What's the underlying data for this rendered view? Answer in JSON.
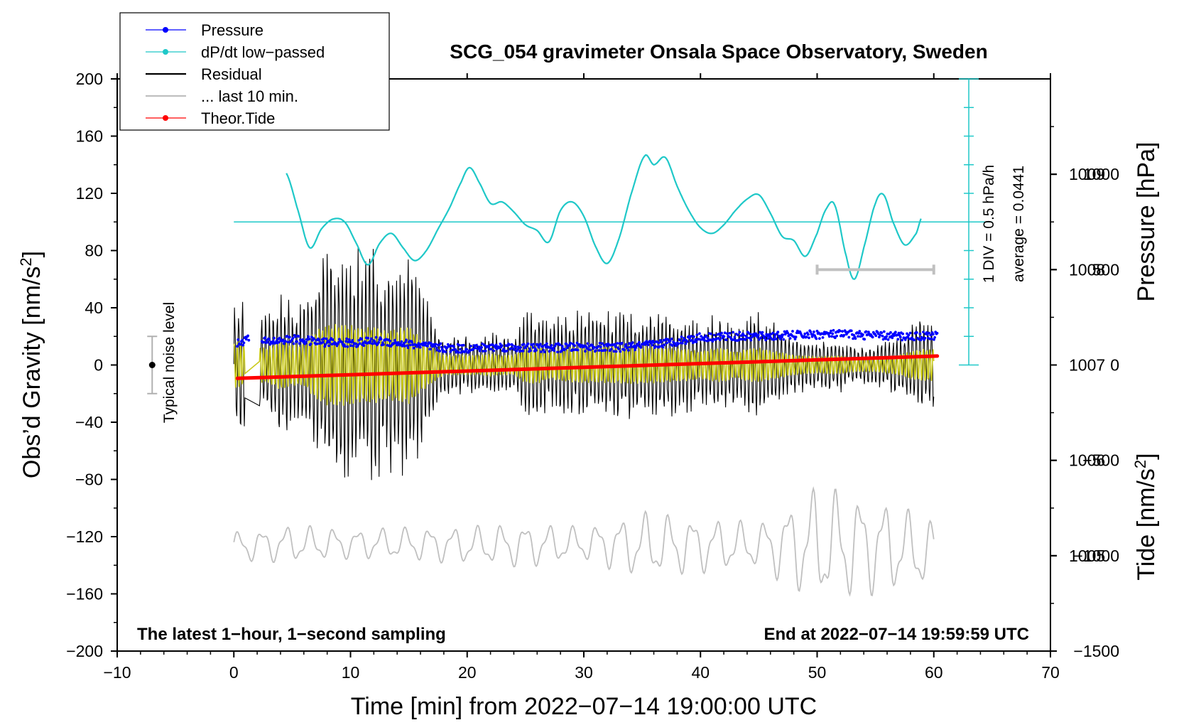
{
  "colors": {
    "pressure": "#0000ff",
    "dpdt": "#1fc8c8",
    "residual": "#000000",
    "last10": "#c0c0c0",
    "tide": "#ff0000",
    "filtered": "#c9c91a"
  },
  "chart_data": {
    "type": "line",
    "title": "SCG_054 gravimeter Onsala Space Observatory, Sweden",
    "xlabel": "Time [min] from 2022−07−14 19:00:00 UTC",
    "ylabel_left": "Obs’d Gravity [nm/s",
    "ylabel_left_sup": "2",
    "ylabel_left_end": "]",
    "ylabel_right_top": "Pressure [hPa]",
    "ylabel_right_bottom": "Tide [nm/s",
    "ylabel_right_bottom_sup": "2",
    "ylabel_right_bottom_end": "]",
    "xlim": [
      -10,
      70
    ],
    "ylim": [
      -200,
      200
    ],
    "pressure_lim": [
      1004.0,
      1010.0
    ],
    "tide_lim": [
      -1500,
      1500
    ],
    "x_ticks": [
      "−10",
      "0",
      "10",
      "20",
      "30",
      "40",
      "50",
      "60",
      "70"
    ],
    "x_tick_values": [
      -10,
      0,
      10,
      20,
      30,
      40,
      50,
      60,
      70
    ],
    "y_ticks": [
      "200",
      "160",
      "120",
      "80",
      "40",
      "0",
      "−40",
      "−80",
      "−120",
      "−160",
      "−200"
    ],
    "y_tick_values": [
      200,
      160,
      120,
      80,
      40,
      0,
      -40,
      -80,
      -120,
      -160,
      -200
    ],
    "pressure_ticks": [
      "1009",
      "1008",
      "1007",
      "1006",
      "1005"
    ],
    "pressure_tick_values": [
      1009,
      1008,
      1007,
      1006,
      1005
    ],
    "tide_ticks": [
      "1000",
      "500",
      "0",
      "−500",
      "−1000",
      "−1500"
    ],
    "tide_tick_values": [
      1000,
      500,
      0,
      -500,
      -1000,
      -1500
    ],
    "legend": [
      {
        "label": "Pressure",
        "style": "line-dot",
        "color": "#0000ff"
      },
      {
        "label": "dP/dt low−passed",
        "style": "line-dot",
        "color": "#1fc8c8"
      },
      {
        "label": "Residual",
        "style": "line",
        "color": "#000000"
      },
      {
        "label": "... last 10 min.",
        "style": "line",
        "color": "#c0c0c0"
      },
      {
        "label": "Theor.Tide",
        "style": "line-dot",
        "color": "#ff0000"
      }
    ],
    "annotations": {
      "bottom_left": "The latest 1−hour, 1−second sampling",
      "bottom_right": "End at 2022−07−14 19:59:59 UTC",
      "noise_label": "Typical noise level",
      "dpdt_scale": "1 DIV = 0.5 hPa/h",
      "dpdt_average": "average = 0.0441"
    },
    "noise_bar": {
      "x": -7,
      "y": 0,
      "low": -20,
      "high": 20
    },
    "dpdt_axis": {
      "x": 63,
      "gravity_top": 200,
      "gravity_bottom": 0,
      "divisions": 10,
      "baseline_gravity": 100
    },
    "last10_bar": {
      "x_start": 50,
      "x_end": 60,
      "tide_value": 500
    },
    "series": [
      {
        "name": "Pressure",
        "axis": "pressure",
        "x": [
          0.3,
          1.2,
          2.5,
          5,
          7.5,
          10,
          12.5,
          15,
          17.5,
          20,
          22.5,
          25,
          27.5,
          30,
          32.5,
          35,
          37.5,
          40,
          42.5,
          45,
          47.5,
          50,
          52.5,
          55,
          57.5,
          60.3
        ],
        "values": [
          1007.22,
          1007.28,
          1007.24,
          1007.27,
          1007.24,
          1007.23,
          1007.25,
          1007.22,
          1007.18,
          1007.17,
          1007.19,
          1007.18,
          1007.18,
          1007.19,
          1007.18,
          1007.2,
          1007.24,
          1007.29,
          1007.3,
          1007.3,
          1007.31,
          1007.32,
          1007.32,
          1007.31,
          1007.3,
          1007.31
        ]
      },
      {
        "name": "dP/dt low−passed",
        "axis": "gravity_display",
        "x": [
          4.5,
          5.5,
          6.5,
          7.5,
          8.5,
          9.5,
          10.5,
          11.5,
          12.5,
          13.5,
          14.5,
          15.5,
          16.5,
          17.5,
          18.5,
          19.5,
          20.2,
          21,
          22,
          23,
          24,
          25,
          26,
          27,
          28,
          29,
          30,
          31,
          32,
          33,
          34,
          35.2,
          36,
          37,
          38,
          39,
          40,
          41,
          42,
          43,
          44,
          45,
          46,
          47,
          48,
          49,
          50,
          50.7,
          51.5,
          52.5,
          53.2,
          54,
          55,
          55.7,
          56.5,
          57.5,
          58.5,
          59
        ],
        "values": [
          134,
          108,
          82,
          95,
          102,
          100,
          85,
          70,
          85,
          92,
          82,
          73,
          80,
          95,
          110,
          128,
          138,
          128,
          113,
          114,
          107,
          98,
          94,
          86,
          108,
          114,
          104,
          83,
          71,
          88,
          118,
          146,
          140,
          145,
          125,
          108,
          96,
          92,
          98,
          108,
          116,
          119,
          106,
          90,
          87,
          76,
          92,
          108,
          112,
          76,
          60,
          82,
          113,
          119,
          100,
          84,
          92,
          104
        ]
      },
      {
        "name": "Residual",
        "axis": "gravity",
        "x": [
          0,
          1,
          2,
          3,
          4,
          5,
          6,
          7,
          8,
          9,
          10,
          11,
          12,
          13,
          14,
          15,
          16,
          17,
          18,
          19,
          20,
          21,
          22,
          23,
          24,
          25,
          26,
          27,
          28,
          29,
          30,
          31,
          32,
          33,
          34,
          35,
          36,
          37,
          38,
          39,
          40,
          41,
          42,
          43,
          44,
          45,
          46,
          47,
          48,
          49,
          50,
          51,
          52,
          53,
          54,
          55,
          56,
          57,
          58,
          59,
          60
        ],
        "values": [
          52,
          45,
          38,
          40,
          55,
          45,
          45,
          75,
          88,
          90,
          88,
          80,
          85,
          75,
          80,
          85,
          60,
          40,
          22,
          22,
          22,
          22,
          25,
          22,
          22,
          40,
          42,
          30,
          35,
          38,
          40,
          38,
          40,
          40,
          42,
          40,
          40,
          38,
          36,
          35,
          30,
          36,
          38,
          28,
          36,
          38,
          32,
          28,
          22,
          20,
          18,
          20,
          20,
          15,
          15,
          15,
          18,
          22,
          30,
          35,
          35
        ]
      },
      {
        "name": "... last 10 min.",
        "axis": "gravity",
        "x": [
          0,
          5,
          10,
          15,
          20,
          25,
          30,
          35,
          40,
          45,
          50,
          55,
          60
        ],
        "values": [
          -127,
          -125,
          -125,
          -125,
          -126,
          -126,
          -125,
          -126,
          -126,
          -126,
          -126,
          -126,
          -132
        ],
        "amplitude": [
          8,
          10,
          8,
          9,
          10,
          12,
          9,
          18,
          15,
          12,
          32,
          26,
          18
        ]
      },
      {
        "name": "Theor.Tide",
        "axis": "tide",
        "x": [
          0.3,
          60.3
        ],
        "values": [
          -70,
          47
        ]
      }
    ]
  }
}
